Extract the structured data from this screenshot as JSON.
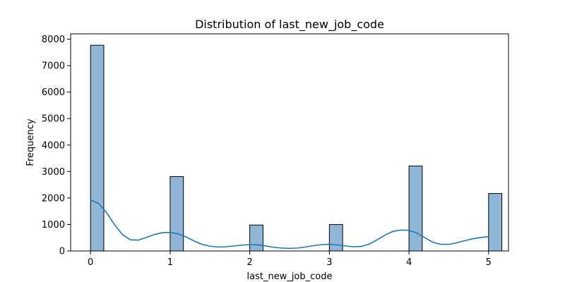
{
  "chart_data": {
    "type": "bar",
    "title": "Distribution of last_new_job_code",
    "xlabel": "last_new_job_code",
    "ylabel": "Frequency",
    "xlim": [
      -0.25,
      5.25
    ],
    "ylim": [
      0,
      8200
    ],
    "xticks": [
      0,
      1,
      2,
      3,
      4,
      5
    ],
    "yticks": [
      0,
      1000,
      2000,
      3000,
      4000,
      5000,
      6000,
      7000,
      8000
    ],
    "bin_width": 0.1667,
    "bars": [
      {
        "x": 0,
        "value": 7770
      },
      {
        "x": 1,
        "value": 2810
      },
      {
        "x": 2,
        "value": 980
      },
      {
        "x": 3,
        "value": 1000
      },
      {
        "x": 4,
        "value": 3210
      },
      {
        "x": 5,
        "value": 2170
      }
    ],
    "kde": {
      "x": [
        0,
        0.1,
        0.2,
        0.3,
        0.4,
        0.5,
        0.6,
        0.7,
        0.8,
        0.9,
        1.0,
        1.1,
        1.2,
        1.3,
        1.4,
        1.5,
        1.6,
        1.7,
        1.8,
        1.9,
        2.0,
        2.1,
        2.2,
        2.3,
        2.4,
        2.5,
        2.6,
        2.7,
        2.8,
        2.9,
        3.0,
        3.1,
        3.2,
        3.3,
        3.4,
        3.5,
        3.6,
        3.7,
        3.8,
        3.9,
        4.0,
        4.1,
        4.2,
        4.3,
        4.4,
        4.5,
        4.6,
        4.7,
        4.8,
        4.9,
        5.0
      ],
      "y": [
        1920,
        1800,
        1450,
        1000,
        620,
        420,
        410,
        510,
        620,
        690,
        700,
        650,
        530,
        380,
        250,
        180,
        150,
        160,
        190,
        220,
        240,
        230,
        190,
        140,
        110,
        100,
        110,
        150,
        200,
        240,
        250,
        230,
        190,
        160,
        170,
        260,
        420,
        600,
        740,
        790,
        780,
        680,
        500,
        330,
        250,
        250,
        310,
        390,
        460,
        510,
        540
      ]
    },
    "bar_color": "#8fb6d6",
    "bar_edge_color": "#000000",
    "line_color": "#1f77b4",
    "grid": false
  }
}
